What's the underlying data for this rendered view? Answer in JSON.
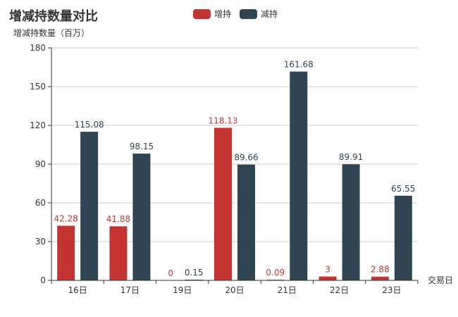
{
  "chart_data": {
    "type": "bar",
    "title": "增减持数量对比",
    "ylabel": "增减持数量（百万）",
    "xlabel": "交易日",
    "categories": [
      "16日",
      "17日",
      "19日",
      "20日",
      "21日",
      "22日",
      "23日"
    ],
    "yticks": [
      "0",
      "30",
      "60",
      "90",
      "120",
      "150",
      "180"
    ],
    "ylim": [
      0,
      180
    ],
    "grid": true,
    "legend_position": "top-center",
    "series": [
      {
        "name": "增持",
        "color": "#c23531",
        "values": [
          42.28,
          41.88,
          0,
          118.13,
          0.09,
          3,
          2.88
        ],
        "labels": [
          "42.28",
          "41.88",
          "0",
          "118.13",
          "0.09",
          "3",
          "2.88"
        ]
      },
      {
        "name": "减持",
        "color": "#2f4554",
        "values": [
          115.08,
          98.15,
          0.15,
          89.66,
          161.68,
          89.91,
          65.55
        ],
        "labels": [
          "115.08",
          "98.15",
          "0.15",
          "89.66",
          "161.68",
          "89.91",
          "65.55"
        ]
      }
    ]
  }
}
